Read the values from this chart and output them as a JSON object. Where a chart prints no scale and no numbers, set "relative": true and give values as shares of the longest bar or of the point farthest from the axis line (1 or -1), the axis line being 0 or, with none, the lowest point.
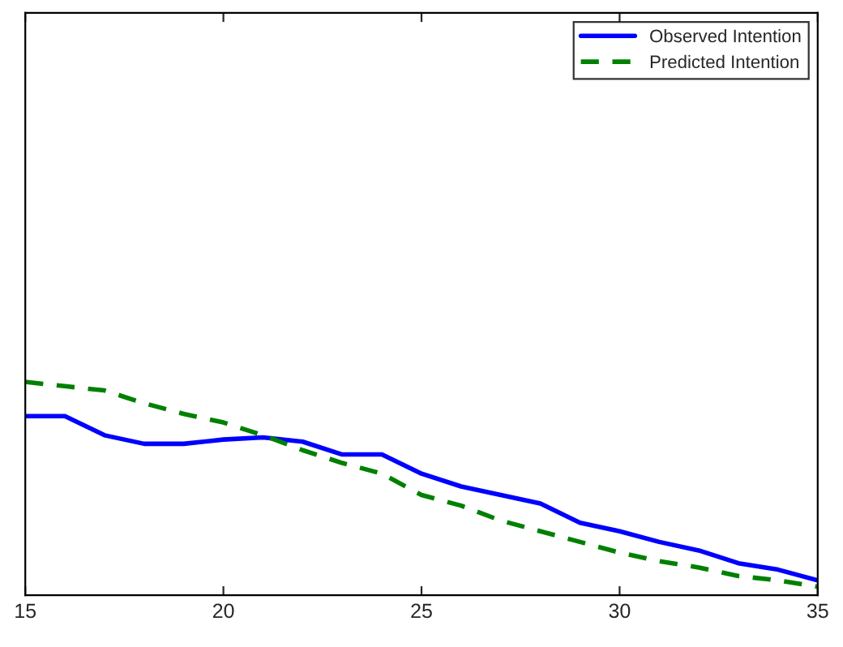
{
  "chart_data": {
    "type": "line",
    "relative": true,
    "x": [
      15,
      16,
      17,
      18,
      19,
      20,
      21,
      22,
      23,
      24,
      25,
      26,
      27,
      28,
      29,
      30,
      31,
      32,
      33,
      34,
      35
    ],
    "xlim": [
      15,
      35
    ],
    "xticks": [
      15,
      20,
      25,
      30,
      35
    ],
    "series": [
      {
        "name": "Observed Intention",
        "color": "#0000ff",
        "line_style": "solid",
        "values": [
          0.84,
          0.84,
          0.75,
          0.71,
          0.71,
          0.73,
          0.74,
          0.72,
          0.66,
          0.66,
          0.57,
          0.51,
          0.47,
          0.43,
          0.34,
          0.3,
          0.25,
          0.21,
          0.15,
          0.12,
          0.07
        ]
      },
      {
        "name": "Predicted Intention",
        "color": "#008000",
        "line_style": "dashed",
        "values": [
          1,
          0.98,
          0.96,
          0.9,
          0.85,
          0.81,
          0.75,
          0.68,
          0.62,
          0.57,
          0.47,
          0.42,
          0.35,
          0.3,
          0.25,
          0.2,
          0.16,
          0.13,
          0.09,
          0.07,
          0.04
        ]
      }
    ],
    "legend": "top right",
    "grid": false
  }
}
